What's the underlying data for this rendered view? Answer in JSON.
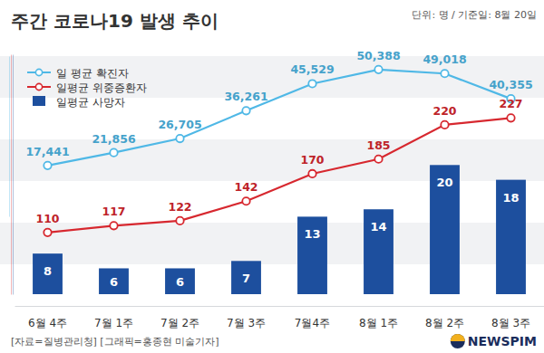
{
  "chart_data": [
    {
      "type": "line",
      "title": "주간 코로나19 발생 추이",
      "subtitle": "단위: 명 / 기준일: 8월 20일",
      "annotations": [
        "[자료=질병관리청] [그래픽=홍종현 미술기자]",
        "NEWSPIM"
      ],
      "legend": "top-left",
      "tick_labels": "x",
      "data_labels": true,
      "categories": [
        "6월 4주",
        "7월 1주",
        "7월 2주",
        "7월 3주",
        "7월4주",
        "8월 1주",
        "8월 2주",
        "8월 3주"
      ],
      "series": [
        {
          "name": "일 평균 확진자",
          "color": "#4fb8e6",
          "marker": "circle",
          "line_style": "solid",
          "values": [
            17441,
            21856,
            26705,
            36261,
            45529,
            50388,
            49018,
            40355
          ],
          "value_labels": [
            "17,441",
            "21,856",
            "26,705",
            "36,261",
            "45,529",
            "50,388",
            "49,018",
            "40,355"
          ]
        }
      ],
      "ylim": [
        0,
        55000
      ],
      "yticks": []
    },
    {
      "type": "line",
      "tick_labels": false,
      "data_labels": true,
      "categories": [
        "6월 4주",
        "7월 1주",
        "7월 2주",
        "7월 3주",
        "7월4주",
        "8월 1주",
        "8월 2주",
        "8월 3주"
      ],
      "series": [
        {
          "name": "일평균 위중증환자",
          "color": "#d7282f",
          "marker": "circle",
          "line_style": "solid",
          "values": [
            110,
            117,
            122,
            142,
            170,
            185,
            220,
            227
          ]
        }
      ],
      "ylim": [
        47,
        292
      ],
      "yticks": []
    },
    {
      "type": "bar",
      "tick_labels": false,
      "data_labels": true,
      "categories": [
        "6월 4주",
        "7월 1주",
        "7월 2주",
        "7월 3주",
        "7월4주",
        "8월 1주",
        "8월 2주",
        "8월 3주"
      ],
      "series": [
        {
          "name": "일평균 사망자",
          "color": "#1d4f9e",
          "values": [
            8,
            6,
            6,
            7,
            13,
            14,
            20,
            18
          ]
        }
      ],
      "ylim": [
        2.5,
        35
      ],
      "yticks": []
    }
  ]
}
